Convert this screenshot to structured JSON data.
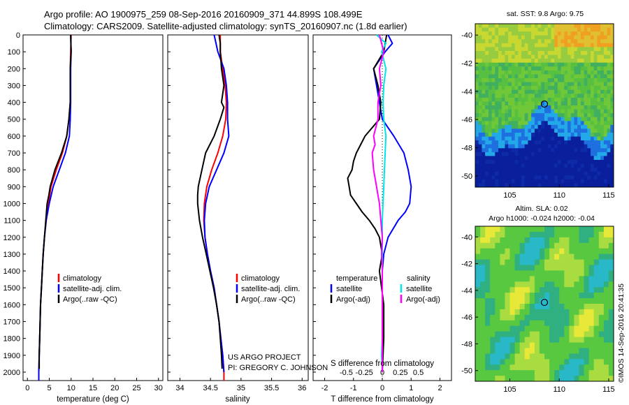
{
  "header": {
    "line1": "Argo profile: AO 1900975_259 08-Sep-2016 20160909_371 44.899S 108.499E",
    "line2": "Climatology: CARS2009. Satellite-adjusted climatology: synTS_20160907.nc (1.8d earlier)"
  },
  "colors": {
    "climatology": "#ff0000",
    "satellite": "#0000ff",
    "argo": "#000000",
    "sat_salinity": "#00e5e5",
    "argo_salinity_adj": "#ff00ff"
  },
  "chart_data": [
    {
      "type": "line",
      "name": "temperature-panel",
      "xlabel": "temperature (deg C)",
      "ylim": [
        2050,
        0
      ],
      "xlim": [
        -1,
        31
      ],
      "xticks": [
        0,
        5,
        10,
        15,
        20,
        25,
        30
      ],
      "yticks": [
        0,
        100,
        200,
        300,
        400,
        500,
        600,
        700,
        800,
        900,
        1000,
        1100,
        1200,
        1300,
        1400,
        1500,
        1600,
        1700,
        1800,
        1900,
        2000
      ],
      "legend": [
        "climatology",
        "satellite-adj. clim.",
        "Argo(..raw -QC)"
      ],
      "series": [
        {
          "name": "climatology",
          "color": "climatology",
          "depth": [
            0,
            100,
            200,
            300,
            400,
            500,
            600,
            700,
            800,
            900,
            1000,
            1100,
            1200,
            1300,
            1400,
            1500,
            1600,
            1700,
            1800,
            1900,
            2000,
            2050
          ],
          "values": [
            10.0,
            9.9,
            9.8,
            9.8,
            9.8,
            9.5,
            9.0,
            8.0,
            6.6,
            5.4,
            4.8,
            4.3,
            3.9,
            3.6,
            3.4,
            3.2,
            3.0,
            2.9,
            2.8,
            2.7,
            2.6,
            2.6
          ]
        },
        {
          "name": "satellite-adj. clim.",
          "color": "satellite",
          "depth": [
            0,
            100,
            200,
            300,
            400,
            500,
            600,
            700,
            800,
            900,
            1000,
            1100,
            1200,
            1300,
            1400,
            1500,
            1600,
            1700,
            1800,
            1900,
            2000,
            2050
          ],
          "values": [
            9.9,
            10.0,
            9.9,
            9.9,
            9.9,
            9.8,
            9.6,
            8.7,
            7.3,
            5.9,
            5.0,
            4.3,
            3.9,
            3.6,
            3.4,
            3.2,
            3.0,
            2.9,
            2.8,
            2.7,
            2.6,
            2.6
          ]
        },
        {
          "name": "Argo(..raw -QC)",
          "color": "argo",
          "depth": [
            0,
            100,
            200,
            300,
            400,
            500,
            600,
            700,
            800,
            900,
            950,
            1000,
            1100,
            1200,
            1300,
            1400,
            1500,
            1600,
            1700,
            1800,
            1900,
            1980
          ],
          "values": [
            9.9,
            10.0,
            9.8,
            9.8,
            9.8,
            9.5,
            9.0,
            7.8,
            6.3,
            5.2,
            4.9,
            4.5,
            4.2,
            3.9,
            3.6,
            3.4,
            3.2,
            3.0,
            2.9,
            2.8,
            2.7,
            2.7
          ]
        }
      ]
    },
    {
      "type": "line",
      "name": "salinity-panel",
      "xlabel": "salinity",
      "ylim": [
        2050,
        0
      ],
      "xlim": [
        33.8,
        36.1
      ],
      "xticks": [
        34,
        34.5,
        35,
        35.5,
        36
      ],
      "legend": [
        "climatology",
        "satellite-adj. clim.",
        "Argo(..raw -QC)"
      ],
      "annotation": [
        "US ARGO PROJECT",
        "PI: GREGORY C. JOHNSON"
      ],
      "series": [
        {
          "name": "climatology",
          "color": "climatology",
          "depth": [
            0,
            100,
            200,
            300,
            400,
            500,
            600,
            700,
            800,
            900,
            1000,
            1100,
            1200,
            1300,
            1400,
            1500,
            1600,
            1700,
            1800,
            1900,
            2000,
            2050
          ],
          "values": [
            34.66,
            34.66,
            34.7,
            34.74,
            34.76,
            34.75,
            34.7,
            34.62,
            34.52,
            34.44,
            34.4,
            34.39,
            34.41,
            34.45,
            34.5,
            34.56,
            34.6,
            34.64,
            34.67,
            34.7,
            34.72,
            34.72
          ]
        },
        {
          "name": "satellite-adj. clim.",
          "color": "satellite",
          "depth": [
            0,
            100,
            200,
            300,
            400,
            500,
            600,
            700,
            800,
            900,
            1000,
            1100,
            1200,
            1300,
            1400,
            1500,
            1600,
            1700,
            1800,
            1900,
            2000
          ],
          "values": [
            34.56,
            34.62,
            34.72,
            34.76,
            34.78,
            34.78,
            34.8,
            34.72,
            34.6,
            34.48,
            34.42,
            34.4,
            34.41,
            34.45,
            34.5,
            34.56,
            34.6,
            34.64,
            34.67,
            34.7,
            34.72
          ]
        },
        {
          "name": "Argo(..raw -QC)",
          "color": "argo",
          "depth": [
            0,
            50,
            100,
            200,
            300,
            400,
            430,
            500,
            600,
            700,
            800,
            850,
            900,
            950,
            1000,
            1100,
            1200,
            1300,
            1400,
            1500,
            1600,
            1700,
            1800,
            1900,
            1980
          ],
          "values": [
            34.64,
            34.66,
            34.66,
            34.68,
            34.72,
            34.68,
            34.72,
            34.66,
            34.56,
            34.42,
            34.36,
            34.33,
            34.3,
            34.29,
            34.29,
            34.32,
            34.37,
            34.43,
            34.49,
            34.55,
            34.6,
            34.64,
            34.66,
            34.68,
            34.69
          ]
        }
      ]
    },
    {
      "type": "line",
      "name": "difference-panel",
      "xlabel": "T difference from climatology",
      "top_axis_label": "S difference from climatology",
      "ylim": [
        2050,
        0
      ],
      "xlim": [
        -2.4,
        2.4
      ],
      "xticks": [
        -2,
        -1,
        0,
        1,
        2
      ],
      "s_ticks": [
        "-0.5",
        "-0.25",
        "0",
        "0.25",
        "0.5"
      ],
      "legend_temperature": {
        "title": "temperature",
        "items": [
          "satellite",
          "Argo(-adj)"
        ]
      },
      "legend_salinity": {
        "title": "salinity",
        "items": [
          "satellite",
          "Argo(-adj)"
        ]
      },
      "series": [
        {
          "name": "T satellite",
          "color": "satellite",
          "depth": [
            0,
            50,
            100,
            200,
            300,
            400,
            500,
            600,
            700,
            800,
            900,
            1000,
            1050,
            1100,
            1200,
            1300,
            1400,
            1600,
            1800,
            2000
          ],
          "values": [
            0.2,
            0.35,
            0.1,
            -0.3,
            -0.2,
            -0.1,
            0.0,
            0.4,
            0.75,
            0.9,
            1.0,
            0.95,
            0.8,
            0.55,
            0.2,
            0.05,
            0.0,
            0.0,
            0.0,
            0.0
          ]
        },
        {
          "name": "T Argo(-adj)",
          "color": "argo",
          "depth": [
            0,
            100,
            200,
            300,
            400,
            500,
            600,
            650,
            700,
            750,
            800,
            850,
            900,
            950,
            1000,
            1050,
            1100,
            1150,
            1200,
            1300,
            1400,
            1600,
            1800,
            2000
          ],
          "values": [
            0.15,
            0.05,
            -0.3,
            -0.15,
            -0.05,
            -0.1,
            -0.6,
            -0.75,
            -0.9,
            -1.0,
            -1.05,
            -1.2,
            -1.15,
            -1.1,
            -0.9,
            -0.7,
            -0.45,
            -0.25,
            -0.1,
            0.0,
            -0.1,
            0.05,
            0.05,
            0.0
          ]
        },
        {
          "name": "S satellite",
          "color": "sat_salinity",
          "depth": [
            0,
            50,
            100,
            200,
            300,
            400,
            500,
            600,
            700,
            800,
            900,
            1000,
            1100,
            1200,
            1300,
            1400,
            1500,
            1600,
            1700,
            1800,
            1900,
            2000
          ],
          "values": [
            -0.08,
            0.05,
            -0.01,
            0.05,
            0.02,
            0.01,
            0.02,
            0.05,
            0.04,
            0.03,
            0.02,
            0.01,
            0.0,
            0.0,
            0.0,
            0.0,
            0.0,
            0.0,
            0.0,
            0.0,
            -0.01,
            0.0
          ]
        },
        {
          "name": "S Argo(-adj)",
          "color": "argo_salinity_adj",
          "depth": [
            0,
            100,
            200,
            300,
            400,
            500,
            600,
            650,
            700,
            800,
            850,
            900,
            950,
            1000,
            1100,
            1200,
            1300,
            1400,
            1500,
            1600,
            1700,
            1800,
            1900,
            2000
          ],
          "values": [
            -0.04,
            0.02,
            -0.04,
            -0.02,
            -0.06,
            -0.06,
            -0.12,
            -0.1,
            -0.14,
            -0.12,
            -0.1,
            -0.08,
            -0.06,
            -0.04,
            -0.02,
            0.0,
            -0.01,
            0.0,
            0.0,
            0.0,
            0.0,
            0.0,
            0.0,
            0.0
          ]
        }
      ]
    },
    {
      "type": "heatmap",
      "name": "sst-map",
      "title": "sat. SST: 9.8 Argo: 9.75",
      "xticks": [
        105,
        110,
        115
      ],
      "yticks": [
        -40,
        -42,
        -44,
        -46,
        -48,
        -50
      ],
      "marker": {
        "lon": 108.499,
        "lat": -44.899
      }
    },
    {
      "type": "heatmap",
      "name": "sla-map",
      "title_line1": "Altim. SLA: 0.02",
      "title_line2": "Argo h1000: -0.024 h2000: -0.04",
      "xticks": [
        105,
        110,
        115
      ],
      "yticks": [
        -40,
        -42,
        -44,
        -46,
        -48,
        -50
      ],
      "marker": {
        "lon": 108.499,
        "lat": -44.899
      }
    }
  ],
  "legend_labels": {
    "climatology": "climatology",
    "satellite": "satellite-adj. clim.",
    "argo": "Argo(..raw -QC)",
    "d_temperature": "temperature",
    "d_salinity": "salinity",
    "d_satellite": "satellite",
    "d_argo": "Argo(-adj)"
  },
  "credit": "©IMOS 14-Sep-2016 20:41:35"
}
